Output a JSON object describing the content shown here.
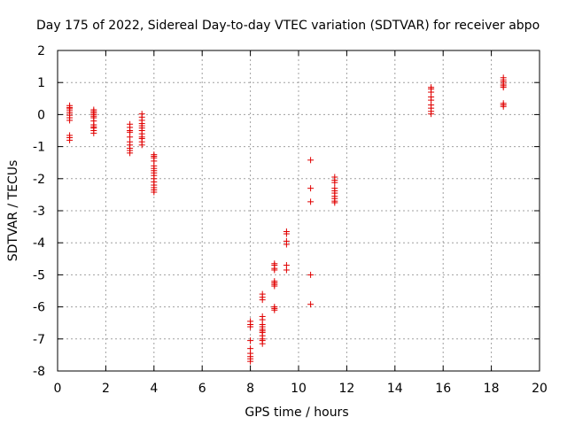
{
  "chart_data": {
    "type": "scatter",
    "title": "Day 175 of 2022, Sidereal Day-to-day VTEC variation (SDTVAR) for receiver abpo",
    "xlabel": "GPS time / hours",
    "ylabel": "SDTVAR / TECUs",
    "xlim": [
      0,
      20
    ],
    "ylim": [
      -8,
      2
    ],
    "xticks": [
      0,
      2,
      4,
      6,
      8,
      10,
      12,
      14,
      16,
      18,
      20
    ],
    "yticks": [
      -8,
      -7,
      -6,
      -5,
      -4,
      -3,
      -2,
      -1,
      0,
      1,
      2
    ],
    "grid": true,
    "marker": "plus",
    "color": "#e00000",
    "series": [
      {
        "name": "SDTVAR",
        "points": [
          [
            0.5,
            0.28
          ],
          [
            0.5,
            0.22
          ],
          [
            0.5,
            0.18
          ],
          [
            0.5,
            0.12
          ],
          [
            0.5,
            0.05
          ],
          [
            0.5,
            -0.02
          ],
          [
            0.5,
            -0.1
          ],
          [
            0.5,
            -0.18
          ],
          [
            0.5,
            -0.65
          ],
          [
            0.5,
            -0.72
          ],
          [
            0.5,
            -0.8
          ],
          [
            1.5,
            0.15
          ],
          [
            1.5,
            0.1
          ],
          [
            1.5,
            0.05
          ],
          [
            1.5,
            0.0
          ],
          [
            1.5,
            -0.05
          ],
          [
            1.5,
            -0.1
          ],
          [
            1.5,
            -0.2
          ],
          [
            1.5,
            -0.32
          ],
          [
            1.5,
            -0.38
          ],
          [
            1.5,
            -0.42
          ],
          [
            1.5,
            -0.5
          ],
          [
            1.5,
            -0.58
          ],
          [
            3.0,
            -0.3
          ],
          [
            3.0,
            -0.4
          ],
          [
            3.0,
            -0.5
          ],
          [
            3.0,
            -0.55
          ],
          [
            3.0,
            -0.7
          ],
          [
            3.0,
            -0.85
          ],
          [
            3.0,
            -0.95
          ],
          [
            3.0,
            -1.05
          ],
          [
            3.0,
            -1.12
          ],
          [
            3.0,
            -1.2
          ],
          [
            3.5,
            0.02
          ],
          [
            3.5,
            -0.08
          ],
          [
            3.5,
            -0.18
          ],
          [
            3.5,
            -0.28
          ],
          [
            3.5,
            -0.35
          ],
          [
            3.5,
            -0.42
          ],
          [
            3.5,
            -0.5
          ],
          [
            3.5,
            -0.6
          ],
          [
            3.5,
            -0.7
          ],
          [
            3.5,
            -0.75
          ],
          [
            3.5,
            -0.85
          ],
          [
            3.5,
            -0.95
          ],
          [
            4.0,
            -1.25
          ],
          [
            4.0,
            -1.3
          ],
          [
            4.0,
            -1.35
          ],
          [
            4.0,
            -1.45
          ],
          [
            4.0,
            -1.6
          ],
          [
            4.0,
            -1.68
          ],
          [
            4.0,
            -1.75
          ],
          [
            4.0,
            -1.82
          ],
          [
            4.0,
            -1.9
          ],
          [
            4.0,
            -2.0
          ],
          [
            4.0,
            -2.1
          ],
          [
            4.0,
            -2.2
          ],
          [
            4.0,
            -2.28
          ],
          [
            4.0,
            -2.35
          ],
          [
            4.0,
            -2.42
          ],
          [
            8.0,
            -6.45
          ],
          [
            8.0,
            -6.55
          ],
          [
            8.0,
            -6.62
          ],
          [
            8.0,
            -7.05
          ],
          [
            8.0,
            -7.3
          ],
          [
            8.0,
            -7.45
          ],
          [
            8.0,
            -7.55
          ],
          [
            8.0,
            -7.62
          ],
          [
            8.0,
            -7.7
          ],
          [
            8.5,
            -5.6
          ],
          [
            8.5,
            -5.7
          ],
          [
            8.5,
            -5.78
          ],
          [
            8.5,
            -6.3
          ],
          [
            8.5,
            -6.4
          ],
          [
            8.5,
            -6.55
          ],
          [
            8.5,
            -6.62
          ],
          [
            8.5,
            -6.7
          ],
          [
            8.5,
            -6.75
          ],
          [
            8.5,
            -6.8
          ],
          [
            8.5,
            -6.9
          ],
          [
            8.5,
            -7.0
          ],
          [
            8.5,
            -7.05
          ],
          [
            8.5,
            -7.15
          ],
          [
            9.0,
            -4.65
          ],
          [
            9.0,
            -4.7
          ],
          [
            9.0,
            -4.8
          ],
          [
            9.0,
            -4.85
          ],
          [
            9.0,
            -5.2
          ],
          [
            9.0,
            -5.25
          ],
          [
            9.0,
            -5.3
          ],
          [
            9.0,
            -5.35
          ],
          [
            9.0,
            -6.0
          ],
          [
            9.0,
            -6.05
          ],
          [
            9.0,
            -6.1
          ],
          [
            9.5,
            -3.65
          ],
          [
            9.5,
            -3.72
          ],
          [
            9.5,
            -3.95
          ],
          [
            9.5,
            -4.05
          ],
          [
            9.5,
            -4.7
          ],
          [
            9.5,
            -4.85
          ],
          [
            10.5,
            -1.42
          ],
          [
            10.5,
            -2.3
          ],
          [
            10.5,
            -2.72
          ],
          [
            10.5,
            -5.0
          ],
          [
            10.5,
            -5.92
          ],
          [
            11.5,
            -1.95
          ],
          [
            11.5,
            -2.05
          ],
          [
            11.5,
            -2.12
          ],
          [
            11.5,
            -2.3
          ],
          [
            11.5,
            -2.38
          ],
          [
            11.5,
            -2.45
          ],
          [
            11.5,
            -2.55
          ],
          [
            11.5,
            -2.62
          ],
          [
            11.5,
            -2.7
          ],
          [
            11.5,
            -2.75
          ],
          [
            15.5,
            0.85
          ],
          [
            15.5,
            0.8
          ],
          [
            15.5,
            0.7
          ],
          [
            15.5,
            0.55
          ],
          [
            15.5,
            0.45
          ],
          [
            15.5,
            0.3
          ],
          [
            15.5,
            0.2
          ],
          [
            15.5,
            0.1
          ],
          [
            15.5,
            0.02
          ],
          [
            18.5,
            1.15
          ],
          [
            18.5,
            1.08
          ],
          [
            18.5,
            1.02
          ],
          [
            18.5,
            0.95
          ],
          [
            18.5,
            0.9
          ],
          [
            18.5,
            0.85
          ],
          [
            18.5,
            0.35
          ],
          [
            18.5,
            0.3
          ],
          [
            18.5,
            0.25
          ]
        ]
      }
    ]
  }
}
